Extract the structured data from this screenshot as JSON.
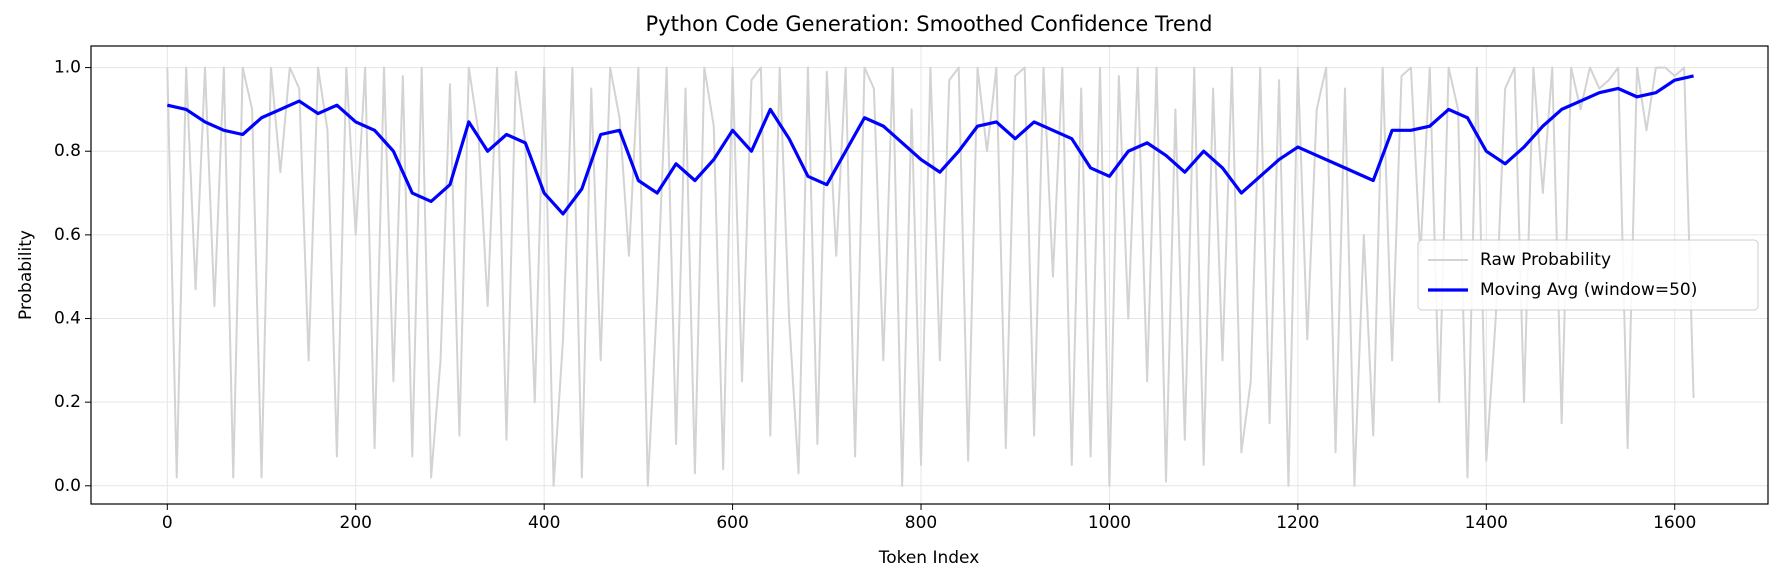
{
  "chart_data": {
    "type": "line",
    "title": "Python Code Generation: Smoothed Confidence Trend",
    "x_label": "Token Index",
    "y_label": "Probability",
    "xlim": [
      -81,
      1699
    ],
    "ylim": [
      -0.0435,
      1.0516
    ],
    "xticks": [
      0,
      200,
      400,
      600,
      800,
      1000,
      1200,
      1400,
      1600
    ],
    "yticks": [
      {
        "value": 0,
        "label": "0.0"
      },
      0.2,
      0.4,
      0.6,
      0.8,
      {
        "value": 1,
        "label": "1.0"
      }
    ],
    "grid": true,
    "legend": "center right",
    "series": [
      {
        "name": "Raw Probability",
        "color": "#d3d3d3",
        "x": [
          0,
          10,
          20,
          30,
          40,
          50,
          60,
          70,
          80,
          90,
          100,
          110,
          120,
          130,
          140,
          150,
          160,
          170,
          180,
          190,
          200,
          210,
          220,
          230,
          240,
          250,
          260,
          270,
          280,
          290,
          300,
          310,
          320,
          330,
          340,
          350,
          360,
          370,
          380,
          390,
          400,
          410,
          420,
          430,
          440,
          450,
          460,
          470,
          480,
          490,
          500,
          510,
          520,
          530,
          540,
          550,
          560,
          570,
          580,
          590,
          600,
          610,
          620,
          630,
          640,
          650,
          660,
          670,
          680,
          690,
          700,
          710,
          720,
          730,
          740,
          750,
          760,
          770,
          780,
          790,
          800,
          810,
          820,
          830,
          840,
          850,
          860,
          870,
          880,
          890,
          900,
          910,
          920,
          930,
          940,
          950,
          960,
          970,
          980,
          990,
          1000,
          1010,
          1020,
          1030,
          1040,
          1050,
          1060,
          1070,
          1080,
          1090,
          1100,
          1110,
          1120,
          1130,
          1140,
          1150,
          1160,
          1170,
          1180,
          1190,
          1200,
          1210,
          1220,
          1230,
          1240,
          1250,
          1260,
          1270,
          1280,
          1290,
          1300,
          1310,
          1320,
          1330,
          1340,
          1350,
          1360,
          1370,
          1380,
          1390,
          1400,
          1410,
          1420,
          1430,
          1440,
          1450,
          1460,
          1470,
          1480,
          1490,
          1500,
          1510,
          1520,
          1530,
          1540,
          1550,
          1560,
          1570,
          1580,
          1590,
          1600,
          1610,
          1620
        ],
        "values": [
          1.0,
          0.02,
          1.0,
          0.47,
          1.0,
          0.43,
          1.0,
          0.02,
          1.0,
          0.9,
          0.02,
          1.0,
          0.75,
          1.0,
          0.95,
          0.3,
          1.0,
          0.85,
          0.07,
          1.0,
          0.6,
          1.0,
          0.09,
          1.0,
          0.25,
          0.98,
          0.07,
          1.0,
          0.02,
          0.3,
          0.96,
          0.12,
          1.0,
          0.85,
          0.43,
          1.0,
          0.11,
          0.99,
          0.82,
          0.2,
          1.0,
          0.0,
          0.35,
          1.0,
          0.02,
          0.95,
          0.3,
          1.0,
          0.88,
          0.55,
          1.0,
          0.0,
          0.45,
          1.0,
          0.1,
          0.95,
          0.03,
          1.0,
          0.86,
          0.04,
          1.0,
          0.25,
          0.97,
          1.0,
          0.12,
          1.0,
          0.4,
          0.03,
          1.0,
          0.1,
          0.99,
          0.55,
          1.0,
          0.07,
          1.0,
          0.95,
          0.3,
          1.0,
          0.0,
          0.9,
          0.05,
          1.0,
          0.3,
          0.97,
          1.0,
          0.06,
          1.0,
          0.8,
          1.0,
          0.09,
          0.98,
          1.0,
          0.12,
          1.0,
          0.5,
          1.0,
          0.05,
          0.95,
          0.07,
          1.0,
          0.0,
          0.98,
          0.4,
          1.0,
          0.25,
          1.0,
          0.01,
          0.9,
          0.11,
          1.0,
          0.05,
          0.95,
          0.3,
          1.0,
          0.08,
          0.25,
          1.0,
          0.15,
          0.97,
          0.0,
          1.0,
          0.35,
          0.9,
          1.0,
          0.08,
          0.95,
          0.0,
          0.6,
          0.12,
          1.0,
          0.3,
          0.98,
          1.0,
          0.55,
          1.0,
          0.2,
          1.0,
          0.9,
          0.02,
          1.0,
          0.06,
          0.4,
          0.95,
          1.0,
          0.2,
          1.0,
          0.7,
          1.0,
          0.15,
          1.0,
          0.9,
          1.0,
          0.95,
          0.97,
          1.0,
          0.09,
          1.0,
          0.85,
          1.0,
          1.0,
          0.98,
          1.0,
          0.21
        ]
      },
      {
        "name": "Moving Avg (window=50)",
        "color": "#0000ff",
        "x": [
          0,
          20,
          40,
          60,
          80,
          100,
          120,
          140,
          160,
          180,
          200,
          220,
          240,
          260,
          280,
          300,
          320,
          340,
          360,
          380,
          400,
          420,
          440,
          460,
          480,
          500,
          520,
          540,
          560,
          580,
          600,
          620,
          640,
          660,
          680,
          700,
          720,
          740,
          760,
          780,
          800,
          820,
          840,
          860,
          880,
          900,
          920,
          940,
          960,
          980,
          1000,
          1020,
          1040,
          1060,
          1080,
          1100,
          1120,
          1140,
          1160,
          1180,
          1200,
          1220,
          1240,
          1260,
          1280,
          1300,
          1320,
          1340,
          1360,
          1380,
          1400,
          1420,
          1440,
          1460,
          1480,
          1500,
          1520,
          1540,
          1560,
          1580,
          1600,
          1620
        ],
        "values": [
          0.91,
          0.9,
          0.87,
          0.85,
          0.84,
          0.88,
          0.9,
          0.92,
          0.89,
          0.91,
          0.87,
          0.85,
          0.8,
          0.7,
          0.68,
          0.72,
          0.87,
          0.8,
          0.84,
          0.82,
          0.7,
          0.65,
          0.71,
          0.84,
          0.85,
          0.73,
          0.7,
          0.77,
          0.73,
          0.78,
          0.85,
          0.8,
          0.9,
          0.83,
          0.74,
          0.72,
          0.8,
          0.88,
          0.86,
          0.82,
          0.78,
          0.75,
          0.8,
          0.86,
          0.87,
          0.83,
          0.87,
          0.85,
          0.83,
          0.76,
          0.74,
          0.8,
          0.82,
          0.79,
          0.75,
          0.8,
          0.76,
          0.7,
          0.74,
          0.78,
          0.81,
          0.79,
          0.77,
          0.75,
          0.73,
          0.85,
          0.85,
          0.86,
          0.9,
          0.88,
          0.8,
          0.77,
          0.81,
          0.86,
          0.9,
          0.92,
          0.94,
          0.95,
          0.93,
          0.94,
          0.97,
          0.98
        ]
      }
    ]
  }
}
